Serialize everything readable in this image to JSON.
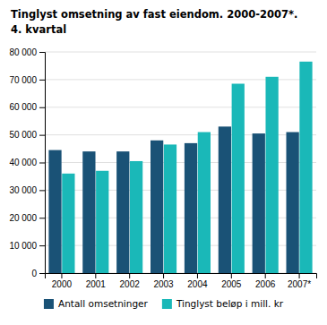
{
  "chart_data": {
    "type": "bar",
    "title": "Tinglyst omsetning av fast eiendom. 2000-2007*.",
    "subtitle": "4. kvartal",
    "categories": [
      "2000",
      "2001",
      "2002",
      "2003",
      "2004",
      "2005",
      "2006",
      "2007*"
    ],
    "series": [
      {
        "name": "Antall omsetninger",
        "color": "#1a5276",
        "values": [
          44500,
          44000,
          44000,
          48000,
          47000,
          53000,
          50500,
          51000
        ]
      },
      {
        "name": "Tinglyst beløp i mill. kr",
        "color": "#1ab8b8",
        "values": [
          36000,
          37000,
          40500,
          46500,
          51000,
          68500,
          71000,
          76500
        ]
      }
    ],
    "ylim": [
      0,
      80000
    ],
    "yticks": [
      0,
      {
        "value": 10000,
        "label": "10 000"
      },
      {
        "value": 20000,
        "label": "20 000"
      },
      {
        "value": 30000,
        "label": "30 000"
      },
      {
        "value": 40000,
        "label": "40 000"
      },
      {
        "value": 50000,
        "label": "50 000"
      },
      {
        "value": 60000,
        "label": "60 000"
      },
      {
        "value": 70000,
        "label": "70 000"
      },
      {
        "value": 80000,
        "label": "80 000"
      }
    ],
    "grid": true,
    "legend": "bottom"
  }
}
